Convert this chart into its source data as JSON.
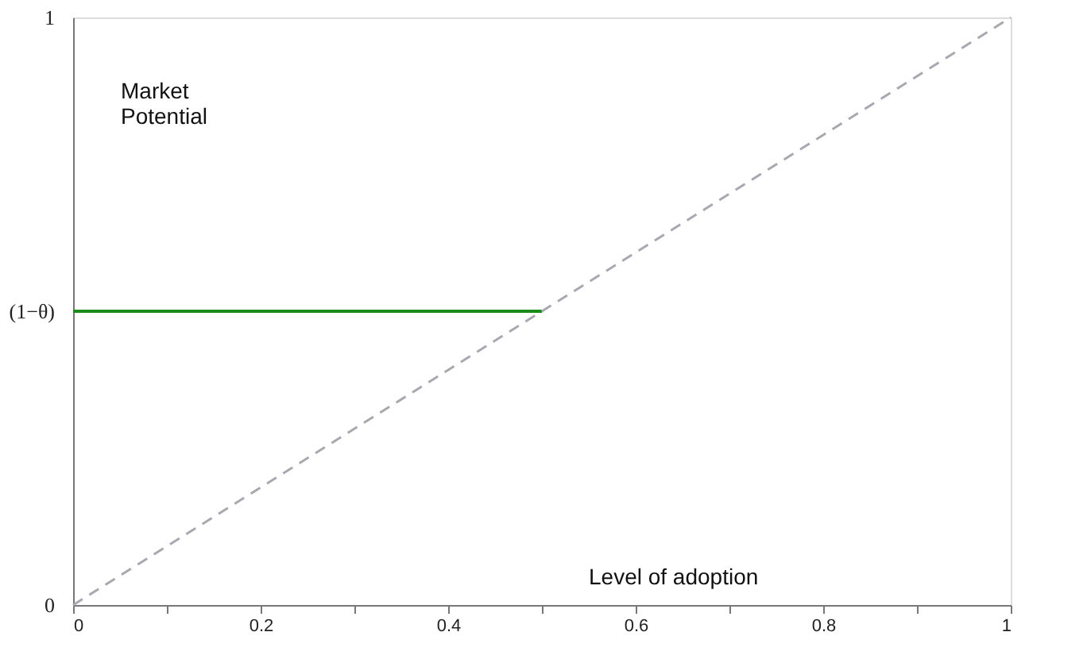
{
  "chart_data": {
    "type": "line",
    "xlabel": "Level of adoption",
    "ylabel": "Market Potential",
    "series": [
      {
        "x": [
          0,
          0.5
        ],
        "values": [
          0.5,
          0.5
        ],
        "color": "#1a8a1a",
        "line_style": "solid"
      },
      {
        "x": [
          0,
          1
        ],
        "values": [
          0,
          1
        ],
        "color": "#a8a8b0",
        "line_style": "dashed"
      }
    ],
    "xlim": [
      0,
      1
    ],
    "ylim": [
      0,
      1
    ],
    "xticks": [
      0,
      {
        "value": 0.1,
        "label": null
      },
      0.2,
      {
        "value": 0.3,
        "label": null
      },
      0.4,
      {
        "value": 0.5,
        "label": null
      },
      0.6,
      {
        "value": 0.7,
        "label": null
      },
      0.8,
      {
        "value": 0.9,
        "label": null
      },
      1
    ],
    "yticks": [
      0,
      {
        "value": 0.5,
        "label": "(1−θ)"
      },
      1
    ],
    "grid": false,
    "marker": "none"
  }
}
